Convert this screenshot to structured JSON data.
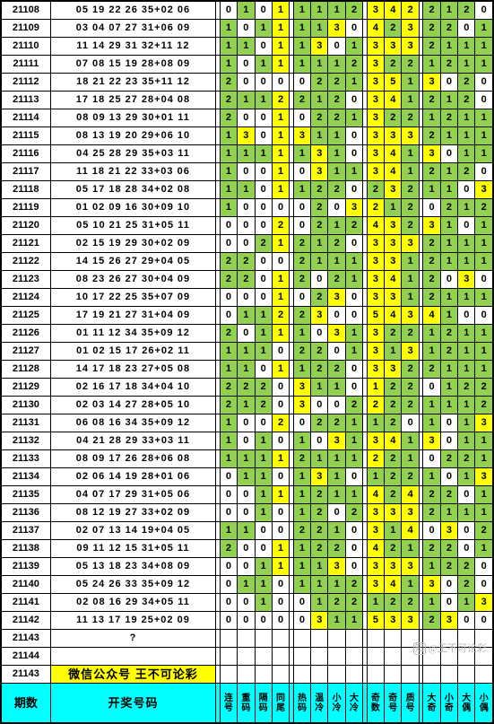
{
  "colors": {
    "green": "#92d050",
    "yellow": "#ffff00",
    "cyan": "#00ffff",
    "white": "#ffffff",
    "border": "#000000"
  },
  "groups": [
    4,
    4,
    3,
    4
  ],
  "headers": {
    "period": "期数",
    "nums": "开奖号码",
    "analysis": [
      "连号",
      "重码",
      "隔码",
      "同尾",
      "热码",
      "温冷",
      "小冷",
      "大冷",
      "奇数",
      "奇号",
      "质号",
      "大奇",
      "小奇",
      "大偶",
      "小偶"
    ]
  },
  "promo": "微信公众号  王不可论彩",
  "watermark": "@王不可论彩",
  "rows": [
    {
      "id": "21108",
      "n": "05 19 22 26 35+02 06",
      "a": [
        "0",
        "1",
        "0",
        "1",
        "1",
        "1",
        "1",
        "2",
        "3",
        "4",
        "2",
        "2",
        "1",
        "2",
        "0"
      ],
      "c": [
        "w",
        "g",
        "w",
        "y",
        "g",
        "g",
        "g",
        "g",
        "y",
        "y",
        "y",
        "g",
        "g",
        "g",
        "w"
      ]
    },
    {
      "id": "21109",
      "n": "03 04 07 27 31+06 09",
      "a": [
        "1",
        "0",
        "1",
        "1",
        "1",
        "1",
        "3",
        "0",
        "4",
        "2",
        "3",
        "2",
        "2",
        "0",
        "1"
      ],
      "c": [
        "g",
        "w",
        "g",
        "y",
        "g",
        "g",
        "y",
        "w",
        "y",
        "g",
        "y",
        "g",
        "g",
        "w",
        "g"
      ]
    },
    {
      "id": "21110",
      "n": "11 14 29 31 32+11 12",
      "a": [
        "1",
        "1",
        "0",
        "1",
        "1",
        "3",
        "0",
        "1",
        "3",
        "3",
        "3",
        "2",
        "1",
        "1",
        "1"
      ],
      "c": [
        "g",
        "g",
        "w",
        "y",
        "g",
        "y",
        "w",
        "g",
        "y",
        "y",
        "y",
        "g",
        "g",
        "g",
        "g"
      ]
    },
    {
      "id": "21111",
      "n": "07 08 15 19 28+08 09",
      "a": [
        "1",
        "0",
        "1",
        "1",
        "1",
        "1",
        "1",
        "2",
        "3",
        "2",
        "2",
        "1",
        "2",
        "1",
        "1"
      ],
      "c": [
        "g",
        "w",
        "g",
        "y",
        "g",
        "g",
        "g",
        "g",
        "y",
        "g",
        "g",
        "g",
        "g",
        "g",
        "g"
      ]
    },
    {
      "id": "21112",
      "n": "18 21 22 23 35+11 12",
      "a": [
        "2",
        "0",
        "0",
        "0",
        "0",
        "2",
        "2",
        "1",
        "3",
        "5",
        "1",
        "3",
        "0",
        "2",
        "0"
      ],
      "c": [
        "g",
        "w",
        "w",
        "w",
        "w",
        "g",
        "g",
        "g",
        "y",
        "y",
        "g",
        "y",
        "w",
        "g",
        "w"
      ]
    },
    {
      "id": "21113",
      "n": "17 18 25 27 28+04 08",
      "a": [
        "2",
        "1",
        "1",
        "2",
        "2",
        "1",
        "2",
        "0",
        "3",
        "4",
        "1",
        "2",
        "1",
        "2",
        "0"
      ],
      "c": [
        "g",
        "g",
        "g",
        "y",
        "g",
        "g",
        "g",
        "w",
        "y",
        "y",
        "g",
        "g",
        "g",
        "g",
        "w"
      ]
    },
    {
      "id": "21114",
      "n": "08 09 13 29 30+01 11",
      "a": [
        "2",
        "0",
        "0",
        "1",
        "0",
        "2",
        "2",
        "1",
        "3",
        "2",
        "2",
        "1",
        "2",
        "1",
        "1"
      ],
      "c": [
        "g",
        "w",
        "w",
        "y",
        "w",
        "g",
        "g",
        "g",
        "y",
        "g",
        "g",
        "g",
        "g",
        "g",
        "g"
      ]
    },
    {
      "id": "21115",
      "n": "08 13 19 20 29+06 10",
      "a": [
        "1",
        "3",
        "0",
        "1",
        "3",
        "1",
        "1",
        "0",
        "3",
        "3",
        "3",
        "2",
        "1",
        "1",
        "1"
      ],
      "c": [
        "g",
        "y",
        "w",
        "y",
        "y",
        "g",
        "g",
        "w",
        "y",
        "y",
        "y",
        "g",
        "g",
        "g",
        "g"
      ]
    },
    {
      "id": "21116",
      "n": "04 25 28 29 35+03 11",
      "a": [
        "1",
        "1",
        "1",
        "1",
        "1",
        "3",
        "1",
        "0",
        "3",
        "4",
        "1",
        "3",
        "0",
        "1",
        "1"
      ],
      "c": [
        "g",
        "g",
        "g",
        "y",
        "g",
        "y",
        "g",
        "w",
        "y",
        "y",
        "g",
        "y",
        "w",
        "g",
        "g"
      ]
    },
    {
      "id": "21117",
      "n": "11 18 21 22 33+03 06",
      "a": [
        "1",
        "0",
        "0",
        "1",
        "0",
        "3",
        "1",
        "1",
        "3",
        "4",
        "1",
        "2",
        "1",
        "2",
        "0"
      ],
      "c": [
        "g",
        "w",
        "w",
        "y",
        "w",
        "y",
        "g",
        "g",
        "y",
        "y",
        "g",
        "g",
        "g",
        "g",
        "w"
      ]
    },
    {
      "id": "21118",
      "n": "05 17 18 28 34+02 08",
      "a": [
        "1",
        "1",
        "0",
        "1",
        "1",
        "2",
        "2",
        "0",
        "2",
        "3",
        "2",
        "1",
        "1",
        "0",
        "3"
      ],
      "c": [
        "g",
        "g",
        "w",
        "y",
        "g",
        "g",
        "g",
        "w",
        "g",
        "y",
        "g",
        "g",
        "g",
        "w",
        "y"
      ]
    },
    {
      "id": "21119",
      "n": "01 02 09 16 30+09 10",
      "a": [
        "1",
        "0",
        "0",
        "0",
        "0",
        "2",
        "0",
        "3",
        "2",
        "1",
        "2",
        "0",
        "2",
        "1",
        "2"
      ],
      "c": [
        "g",
        "w",
        "w",
        "w",
        "w",
        "g",
        "w",
        "y",
        "y",
        "g",
        "g",
        "w",
        "g",
        "g",
        "g"
      ]
    },
    {
      "id": "21120",
      "n": "05 10 21 25 31+05 11",
      "a": [
        "0",
        "0",
        "0",
        "2",
        "0",
        "2",
        "1",
        "2",
        "4",
        "3",
        "2",
        "3",
        "1",
        "0",
        "1"
      ],
      "c": [
        "w",
        "w",
        "w",
        "y",
        "w",
        "g",
        "g",
        "g",
        "y",
        "y",
        "g",
        "y",
        "g",
        "w",
        "g"
      ]
    },
    {
      "id": "21121",
      "n": "02 15 19 29 30+02 09",
      "a": [
        "0",
        "0",
        "2",
        "1",
        "2",
        "1",
        "2",
        "0",
        "3",
        "3",
        "3",
        "2",
        "1",
        "1",
        "1"
      ],
      "c": [
        "w",
        "w",
        "g",
        "y",
        "g",
        "g",
        "g",
        "w",
        "y",
        "y",
        "y",
        "g",
        "g",
        "g",
        "g"
      ]
    },
    {
      "id": "21122",
      "n": "14 15 26 27 29+04 05",
      "a": [
        "2",
        "2",
        "0",
        "0",
        "2",
        "1",
        "1",
        "1",
        "3",
        "3",
        "1",
        "2",
        "1",
        "1",
        "1"
      ],
      "c": [
        "g",
        "g",
        "w",
        "w",
        "g",
        "g",
        "g",
        "g",
        "y",
        "y",
        "g",
        "g",
        "g",
        "g",
        "g"
      ]
    },
    {
      "id": "21123",
      "n": "08 23 26 27 30+04 09",
      "a": [
        "2",
        "2",
        "0",
        "1",
        "2",
        "0",
        "2",
        "1",
        "3",
        "4",
        "1",
        "2",
        "0",
        "3",
        "0"
      ],
      "c": [
        "g",
        "g",
        "w",
        "y",
        "g",
        "w",
        "g",
        "g",
        "y",
        "y",
        "g",
        "g",
        "w",
        "y",
        "w"
      ]
    },
    {
      "id": "21124",
      "n": "10 17 22 25 35+07 09",
      "a": [
        "0",
        "0",
        "0",
        "1",
        "0",
        "2",
        "3",
        "0",
        "3",
        "3",
        "1",
        "2",
        "1",
        "1",
        "1"
      ],
      "c": [
        "w",
        "w",
        "w",
        "y",
        "w",
        "g",
        "y",
        "w",
        "y",
        "y",
        "g",
        "g",
        "g",
        "g",
        "g"
      ]
    },
    {
      "id": "21125",
      "n": "17 19 21 27 31+04 09",
      "a": [
        "0",
        "1",
        "1",
        "2",
        "2",
        "3",
        "0",
        "0",
        "5",
        "4",
        "3",
        "4",
        "1",
        "0",
        "0"
      ],
      "c": [
        "w",
        "g",
        "g",
        "y",
        "g",
        "y",
        "w",
        "w",
        "y",
        "y",
        "y",
        "y",
        "g",
        "w",
        "w"
      ]
    },
    {
      "id": "21126",
      "n": "01 11 12 34 35+09 12",
      "a": [
        "2",
        "0",
        "1",
        "1",
        "1",
        "0",
        "3",
        "1",
        "3",
        "2",
        "2",
        "1",
        "2",
        "1",
        "1"
      ],
      "c": [
        "g",
        "w",
        "g",
        "y",
        "g",
        "w",
        "y",
        "g",
        "y",
        "g",
        "g",
        "g",
        "g",
        "g",
        "g"
      ]
    },
    {
      "id": "21127",
      "n": "01 02 15 17 26+02 11",
      "a": [
        "1",
        "1",
        "1",
        "0",
        "2",
        "2",
        "0",
        "1",
        "3",
        "1",
        "3",
        "1",
        "2",
        "1",
        "1"
      ],
      "c": [
        "g",
        "g",
        "g",
        "w",
        "g",
        "g",
        "w",
        "g",
        "y",
        "g",
        "y",
        "g",
        "g",
        "g",
        "g"
      ]
    },
    {
      "id": "21128",
      "n": "14 17 18 23 27+05 08",
      "a": [
        "1",
        "1",
        "0",
        "1",
        "1",
        "2",
        "2",
        "0",
        "3",
        "3",
        "2",
        "2",
        "1",
        "1",
        "1"
      ],
      "c": [
        "g",
        "g",
        "w",
        "y",
        "g",
        "g",
        "g",
        "w",
        "y",
        "y",
        "g",
        "g",
        "g",
        "g",
        "g"
      ]
    },
    {
      "id": "21129",
      "n": "02 16 17 18 34+04 10",
      "a": [
        "2",
        "2",
        "2",
        "0",
        "3",
        "1",
        "1",
        "0",
        "1",
        "2",
        "2",
        "0",
        "1",
        "2",
        "2"
      ],
      "c": [
        "g",
        "g",
        "g",
        "w",
        "y",
        "g",
        "g",
        "w",
        "y",
        "g",
        "g",
        "w",
        "g",
        "g",
        "g"
      ]
    },
    {
      "id": "21130",
      "n": "02 03 14 27 28+05 10",
      "a": [
        "2",
        "1",
        "2",
        "0",
        "3",
        "0",
        "0",
        "2",
        "2",
        "2",
        "2",
        "1",
        "1",
        "1",
        "2"
      ],
      "c": [
        "g",
        "g",
        "g",
        "w",
        "y",
        "w",
        "w",
        "g",
        "y",
        "g",
        "g",
        "g",
        "g",
        "g",
        "g"
      ]
    },
    {
      "id": "21131",
      "n": "06 08 16 34 35+09 12",
      "a": [
        "1",
        "0",
        "0",
        "2",
        "0",
        "2",
        "2",
        "1",
        "1",
        "2",
        "0",
        "1",
        "0",
        "1",
        "3"
      ],
      "c": [
        "g",
        "w",
        "w",
        "y",
        "w",
        "g",
        "g",
        "g",
        "g",
        "g",
        "w",
        "g",
        "w",
        "g",
        "y"
      ]
    },
    {
      "id": "21132",
      "n": "04 21 28 29 33+03 11",
      "a": [
        "1",
        "0",
        "1",
        "0",
        "1",
        "0",
        "3",
        "1",
        "3",
        "4",
        "1",
        "3",
        "0",
        "1",
        "1"
      ],
      "c": [
        "g",
        "w",
        "g",
        "w",
        "g",
        "w",
        "y",
        "g",
        "y",
        "y",
        "g",
        "y",
        "w",
        "g",
        "g"
      ]
    },
    {
      "id": "21133",
      "n": "08 09 17 26 28+06 08",
      "a": [
        "1",
        "1",
        "1",
        "1",
        "2",
        "1",
        "1",
        "1",
        "2",
        "2",
        "1",
        "0",
        "2",
        "2",
        "1"
      ],
      "c": [
        "g",
        "g",
        "g",
        "y",
        "g",
        "g",
        "g",
        "g",
        "y",
        "g",
        "g",
        "w",
        "g",
        "g",
        "g"
      ]
    },
    {
      "id": "21134",
      "n": "02 06 14 19 28+01 06",
      "a": [
        "0",
        "1",
        "1",
        "0",
        "1",
        "3",
        "1",
        "0",
        "1",
        "2",
        "2",
        "1",
        "0",
        "1",
        "3"
      ],
      "c": [
        "w",
        "g",
        "g",
        "w",
        "g",
        "y",
        "g",
        "w",
        "g",
        "g",
        "g",
        "g",
        "w",
        "g",
        "y"
      ]
    },
    {
      "id": "21135",
      "n": "04 07 17 29 31+05 06",
      "a": [
        "0",
        "0",
        "1",
        "1",
        "1",
        "2",
        "1",
        "1",
        "4",
        "2",
        "4",
        "2",
        "2",
        "0",
        "1"
      ],
      "c": [
        "w",
        "w",
        "g",
        "y",
        "g",
        "g",
        "g",
        "g",
        "y",
        "g",
        "y",
        "g",
        "g",
        "w",
        "g"
      ]
    },
    {
      "id": "21136",
      "n": "08 12 19 27 33+02 09",
      "a": [
        "0",
        "0",
        "1",
        "0",
        "1",
        "2",
        "0",
        "2",
        "3",
        "3",
        "3",
        "2",
        "1",
        "1",
        "1"
      ],
      "c": [
        "w",
        "w",
        "g",
        "w",
        "g",
        "g",
        "w",
        "g",
        "y",
        "y",
        "y",
        "g",
        "g",
        "g",
        "g"
      ]
    },
    {
      "id": "21137",
      "n": "02 07 13 14 19+04 05",
      "a": [
        "1",
        "1",
        "0",
        "0",
        "2",
        "2",
        "1",
        "0",
        "3",
        "1",
        "4",
        "0",
        "3",
        "0",
        "2"
      ],
      "c": [
        "g",
        "g",
        "w",
        "w",
        "g",
        "g",
        "g",
        "w",
        "y",
        "g",
        "y",
        "w",
        "y",
        "w",
        "g"
      ]
    },
    {
      "id": "21138",
      "n": "09 11 12 15 31+05 11",
      "a": [
        "2",
        "0",
        "0",
        "1",
        "1",
        "2",
        "2",
        "0",
        "4",
        "2",
        "1",
        "2",
        "2",
        "0",
        "1"
      ],
      "c": [
        "g",
        "w",
        "w",
        "y",
        "g",
        "g",
        "g",
        "w",
        "y",
        "g",
        "g",
        "g",
        "g",
        "w",
        "g"
      ]
    },
    {
      "id": "21139",
      "n": "05 13 18 23 34+08 09",
      "a": [
        "0",
        "0",
        "1",
        "1",
        "1",
        "1",
        "3",
        "0",
        "3",
        "3",
        "3",
        "1",
        "2",
        "2",
        "0"
      ],
      "c": [
        "w",
        "w",
        "g",
        "y",
        "g",
        "g",
        "y",
        "w",
        "y",
        "y",
        "y",
        "g",
        "g",
        "g",
        "w"
      ]
    },
    {
      "id": "21140",
      "n": "05 24 26 33 35+09 12",
      "a": [
        "0",
        "1",
        "1",
        "0",
        "1",
        "1",
        "1",
        "2",
        "3",
        "4",
        "1",
        "3",
        "0",
        "2",
        "0"
      ],
      "c": [
        "w",
        "g",
        "g",
        "w",
        "g",
        "g",
        "g",
        "g",
        "y",
        "y",
        "g",
        "y",
        "w",
        "g",
        "w"
      ]
    },
    {
      "id": "21141",
      "n": "02 08 16 29 34+05 11",
      "a": [
        "0",
        "0",
        "1",
        "0",
        "0",
        "1",
        "2",
        "2",
        "1",
        "2",
        "2",
        "1",
        "0",
        "1",
        "3"
      ],
      "c": [
        "w",
        "w",
        "g",
        "w",
        "w",
        "g",
        "g",
        "g",
        "g",
        "g",
        "g",
        "g",
        "w",
        "g",
        "y"
      ]
    },
    {
      "id": "21142",
      "n": "11 13 17 19 25+02 09",
      "a": [
        "0",
        "0",
        "0",
        "0",
        "0",
        "3",
        "1",
        "1",
        "5",
        "3",
        "3",
        "2",
        "3",
        "0",
        "0"
      ],
      "c": [
        "w",
        "w",
        "w",
        "w",
        "w",
        "y",
        "g",
        "g",
        "y",
        "y",
        "y",
        "g",
        "y",
        "w",
        "w"
      ]
    }
  ],
  "empty": [
    "21143",
    "21144"
  ],
  "promoId": "21143"
}
